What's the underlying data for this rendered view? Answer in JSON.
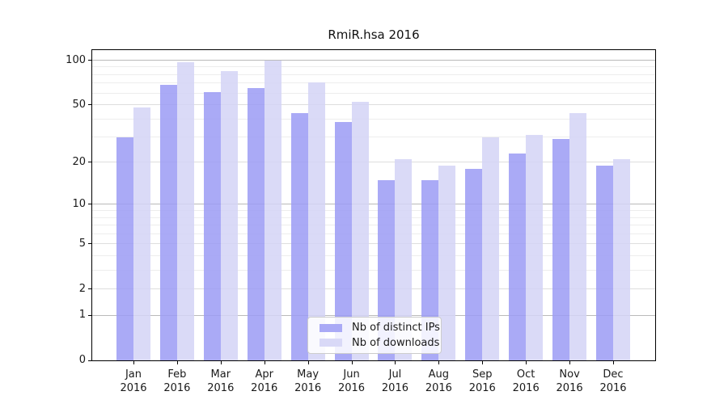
{
  "chart_data": {
    "type": "bar",
    "title": "RmiR.hsa 2016",
    "categories": [
      "Jan 2016",
      "Feb 2016",
      "Mar 2016",
      "Apr 2016",
      "May 2016",
      "Jun 2016",
      "Jul 2016",
      "Aug 2016",
      "Sep 2016",
      "Oct 2016",
      "Nov 2016",
      "Dec 2016"
    ],
    "x_tick_line1": [
      "Jan",
      "Feb",
      "Mar",
      "Apr",
      "May",
      "Jun",
      "Jul",
      "Aug",
      "Sep",
      "Oct",
      "Nov",
      "Dec"
    ],
    "x_tick_line2": [
      "2016",
      "2016",
      "2016",
      "2016",
      "2016",
      "2016",
      "2016",
      "2016",
      "2016",
      "2016",
      "2016",
      "2016"
    ],
    "series": [
      {
        "name": "Nb of distinct IPs",
        "color": "rgba(155,155,245,0.85)",
        "swatch_color": "#aaaaf6",
        "values": [
          30,
          68,
          61,
          65,
          44,
          38,
          15,
          15,
          18,
          23,
          29,
          19
        ]
      },
      {
        "name": "Nb of downloads",
        "color": "rgba(211,211,246,0.85)",
        "swatch_color": "#d9d9f7",
        "values": [
          48,
          97,
          84,
          100,
          71,
          52,
          21,
          19,
          30,
          31,
          44,
          21
        ]
      }
    ],
    "yscale": "log1p",
    "ylim": [
      0,
      117
    ],
    "y_ticks": [
      0,
      1,
      2,
      5,
      10,
      20,
      50,
      100
    ],
    "y_tick_labels": [
      "0",
      "1",
      "2",
      "5",
      "10",
      "20",
      "50",
      "100"
    ],
    "y_decade_gridlines": [
      1,
      10,
      100
    ],
    "y_sub_gridlines": [
      2,
      5,
      20,
      50
    ],
    "y_minor_gridlines": [
      3,
      4,
      6,
      7,
      8,
      9,
      30,
      40,
      60,
      70,
      80,
      90
    ],
    "grid": true,
    "legend_position": "lower center",
    "xlabel": "",
    "ylabel": ""
  },
  "colors": {
    "background": "#ffffff",
    "spine": "#000000",
    "grid_decade": "#bababa",
    "grid_sub": "#dedede",
    "grid_minor": "#ededed",
    "text": "#1a1a1a",
    "legend_border": "#cccccc",
    "legend_background": "rgba(255,255,255,0.85)"
  }
}
